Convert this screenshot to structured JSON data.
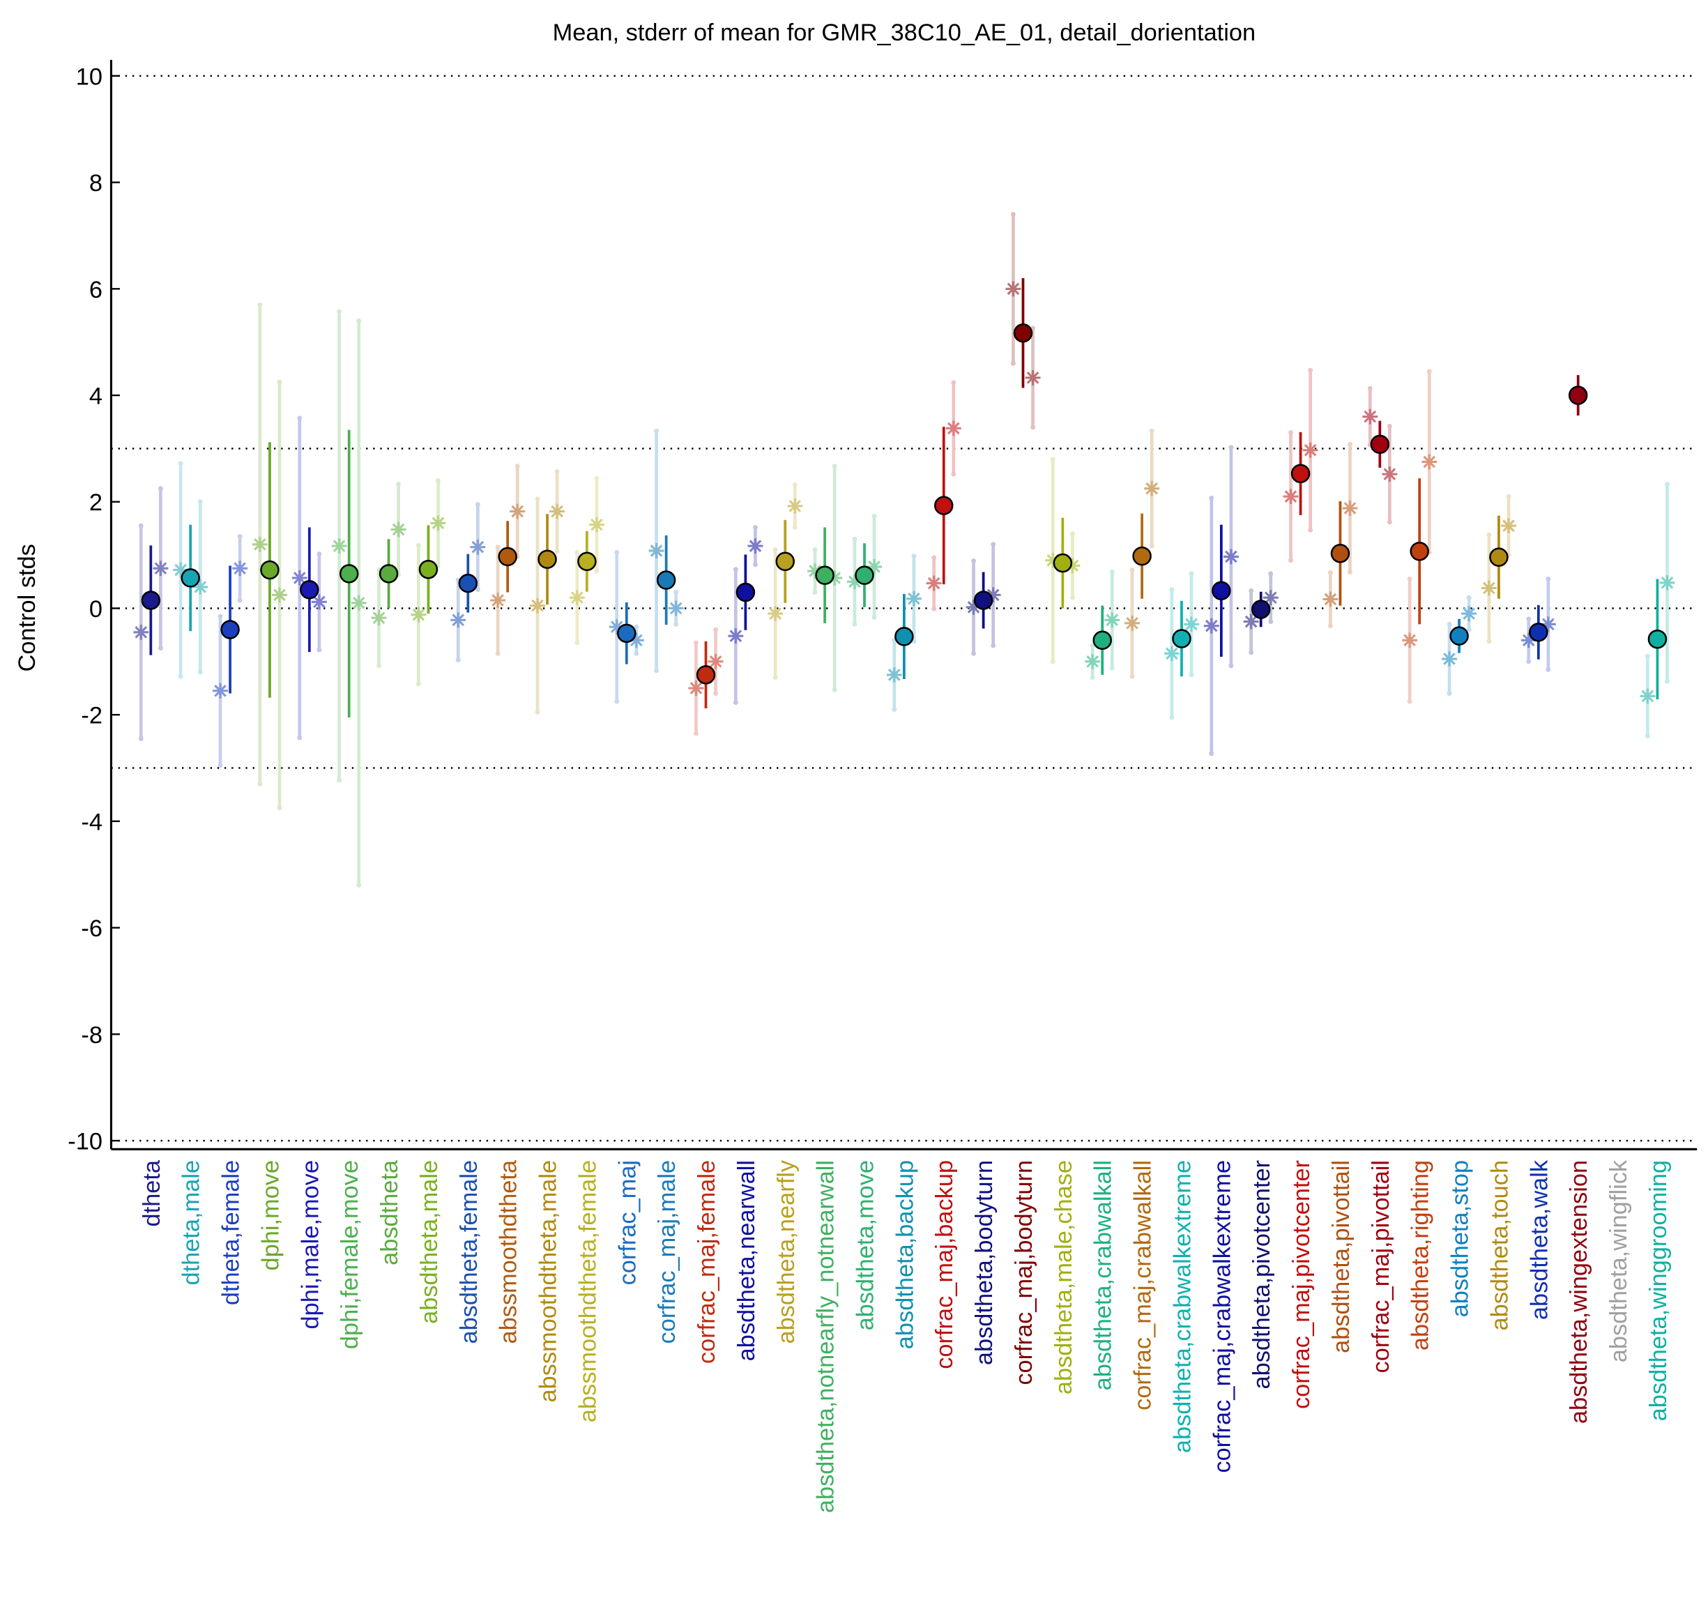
{
  "chart_data": {
    "type": "errorbar",
    "title": "Mean, stderr of mean for GMR_38C10_AE_01, detail_dorientation",
    "ylabel": "Control stds",
    "categories": [
      "dtheta",
      "dtheta,male",
      "dtheta,female",
      "dphi,move",
      "dphi,male,move",
      "dphi,female,move",
      "absdtheta",
      "absdtheta,male",
      "absdtheta,female",
      "abssmoothdtheta",
      "abssmoothdtheta,male",
      "abssmoothdtheta,female",
      "corfrac_maj",
      "corfrac_maj,male",
      "corfrac_maj,female",
      "absdtheta,nearwall",
      "absdtheta,nearfly",
      "absdtheta,notnearfly_notnearwall",
      "absdtheta,move",
      "absdtheta,backup",
      "corfrac_maj,backup",
      "absdtheta,bodyturn",
      "corfrac_maj,bodyturn",
      "absdtheta,male,chase",
      "absdtheta,crabwalkall",
      "corfrac_maj,crabwalkall",
      "absdtheta,crabwalkextreme",
      "corfrac_maj,crabwalkextreme",
      "absdtheta,pivotcenter",
      "corfrac_maj,pivotcenter",
      "absdtheta,pivottail",
      "corfrac_maj,pivottail",
      "absdtheta,righting",
      "absdtheta,stop",
      "absdtheta,touch",
      "absdtheta,walk",
      "absdtheta,wingextension",
      "absdtheta,wingflick",
      "absdtheta,winggrooming"
    ],
    "colors": [
      "#1a1a8c",
      "#1aa3b3",
      "#1a3fbf",
      "#6aa82a",
      "#1a1ab0",
      "#4cb04c",
      "#5aaa40",
      "#7ab020",
      "#1a50b0",
      "#b05a10",
      "#b08a10",
      "#b8b020",
      "#1a6ac0",
      "#1a7ab8",
      "#c02a10",
      "#1010a0",
      "#b8a020",
      "#40b060",
      "#30b070",
      "#1090b0",
      "#c01010",
      "#101080",
      "#800000",
      "#a0b010",
      "#20b080",
      "#b06a10",
      "#10b0b0",
      "#1010a0",
      "#101070",
      "#c01010",
      "#b05010",
      "#a00010",
      "#c04010",
      "#1080c0",
      "#b08a10",
      "#1030b0",
      "#900010",
      "#a0a0a0",
      "#10b0a0"
    ],
    "series": [
      {
        "marker": "circle",
        "values": [
          0.15,
          0.57,
          -0.4,
          0.72,
          0.35,
          0.65,
          0.65,
          0.73,
          0.47,
          0.97,
          0.92,
          0.88,
          -0.47,
          0.53,
          -1.25,
          0.3,
          0.88,
          0.62,
          0.62,
          -0.53,
          1.93,
          0.15,
          5.17,
          0.85,
          -0.6,
          0.98,
          -0.57,
          0.33,
          -0.02,
          2.53,
          1.03,
          3.08,
          1.07,
          -0.52,
          0.96,
          -0.45,
          4.0,
          null,
          -0.58
        ],
        "errors": [
          1.03,
          1.0,
          1.2,
          2.4,
          1.17,
          2.7,
          0.65,
          0.83,
          0.55,
          0.67,
          0.85,
          0.57,
          0.58,
          0.84,
          0.63,
          0.71,
          0.78,
          0.9,
          0.6,
          0.8,
          1.48,
          0.53,
          1.03,
          0.85,
          0.65,
          0.8,
          0.71,
          1.24,
          0.33,
          0.78,
          0.98,
          0.44,
          1.37,
          0.32,
          0.78,
          0.51,
          0.38,
          null,
          1.13
        ]
      },
      {
        "marker": "asterisk",
        "values": [
          -0.45,
          0.72,
          -1.55,
          1.2,
          0.57,
          1.17,
          -0.18,
          -0.12,
          -0.22,
          0.15,
          0.05,
          0.2,
          -0.35,
          1.08,
          -1.5,
          -0.52,
          -0.1,
          0.7,
          0.5,
          -1.25,
          0.47,
          0.02,
          6.0,
          0.9,
          -1.0,
          -0.28,
          -0.85,
          -0.33,
          -0.25,
          2.1,
          0.17,
          3.6,
          -0.6,
          -0.95,
          0.38,
          -0.6,
          null,
          null,
          -1.65
        ],
        "errors": [
          2.0,
          2.0,
          1.4,
          4.5,
          3.0,
          4.4,
          0.9,
          1.3,
          0.75,
          1.0,
          2.0,
          0.85,
          1.4,
          2.25,
          0.85,
          1.25,
          1.2,
          0.4,
          0.8,
          0.65,
          0.48,
          0.87,
          1.4,
          1.9,
          0.3,
          1.0,
          1.2,
          2.4,
          0.58,
          1.2,
          0.5,
          0.53,
          1.15,
          0.65,
          1.0,
          0.4,
          null,
          null,
          0.75
        ]
      },
      {
        "marker": "asterisk",
        "values": [
          0.75,
          0.4,
          0.75,
          0.25,
          0.12,
          0.1,
          1.48,
          1.6,
          1.15,
          1.82,
          1.82,
          1.57,
          -0.6,
          0.0,
          -1.0,
          1.17,
          1.92,
          0.57,
          0.78,
          0.18,
          3.38,
          0.25,
          4.33,
          0.8,
          -0.22,
          2.25,
          -0.3,
          0.97,
          0.2,
          2.97,
          1.88,
          2.52,
          2.75,
          -0.1,
          1.55,
          -0.3,
          null,
          null,
          0.48
        ],
        "errors": [
          1.5,
          1.6,
          0.6,
          4.0,
          0.9,
          5.3,
          0.85,
          0.8,
          0.8,
          0.85,
          0.75,
          0.87,
          0.25,
          0.3,
          0.6,
          0.35,
          0.4,
          2.1,
          0.95,
          0.8,
          0.86,
          0.95,
          0.93,
          0.6,
          0.9,
          1.08,
          0.95,
          2.05,
          0.45,
          1.5,
          1.2,
          0.9,
          1.7,
          0.3,
          0.55,
          0.85,
          null,
          null,
          1.85
        ]
      }
    ],
    "ylim": [
      -10.16,
      10.3
    ],
    "yticks": [
      -10,
      -8,
      -6,
      -4,
      -2,
      0,
      2,
      4,
      6,
      8,
      10
    ],
    "reference_lines": [
      -10,
      -3,
      0,
      3,
      10
    ]
  }
}
